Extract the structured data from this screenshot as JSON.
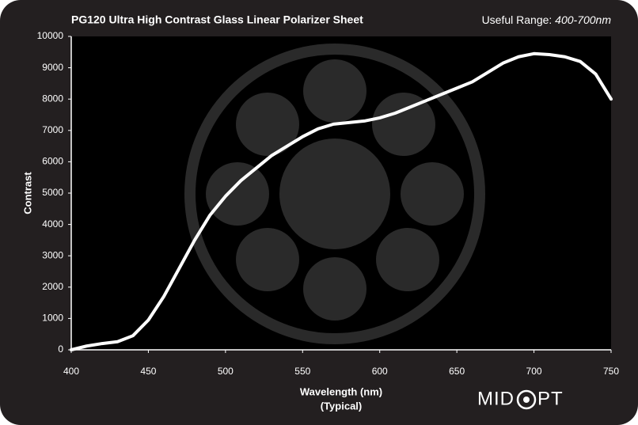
{
  "chart_data": {
    "type": "line",
    "title": "PG120 Ultra High Contrast Glass Linear Polarizer Sheet",
    "useful_range_label": "Useful Range:",
    "useful_range_value": "400-700nm",
    "xlabel": "Wavelength (nm)",
    "xlabel_sub": "(Typical)",
    "ylabel": "Contrast",
    "logo": {
      "left": "MID",
      "right": "PT"
    },
    "x": [
      400,
      410,
      420,
      430,
      440,
      450,
      460,
      470,
      480,
      490,
      500,
      510,
      520,
      530,
      540,
      550,
      560,
      570,
      580,
      590,
      600,
      610,
      620,
      630,
      640,
      650,
      660,
      670,
      680,
      690,
      700,
      710,
      720,
      730,
      740,
      750
    ],
    "series": [
      {
        "color": "#ffffff",
        "values": [
          0,
          120,
          200,
          260,
          450,
          950,
          1700,
          2600,
          3500,
          4300,
          4900,
          5400,
          5800,
          6200,
          6500,
          6800,
          7050,
          7200,
          7250,
          7300,
          7400,
          7550,
          7750,
          7950,
          8150,
          8350,
          8550,
          8850,
          9150,
          9350,
          9450,
          9420,
          9350,
          9200,
          8800,
          8000
        ]
      }
    ],
    "xlim": [
      400,
      750
    ],
    "xticks": [
      400,
      450,
      500,
      550,
      600,
      650,
      700,
      750
    ],
    "ylim": [
      0,
      10000
    ],
    "yticks": [
      0,
      1000,
      2000,
      3000,
      4000,
      5000,
      6000,
      7000,
      8000,
      9000,
      10000
    ]
  }
}
